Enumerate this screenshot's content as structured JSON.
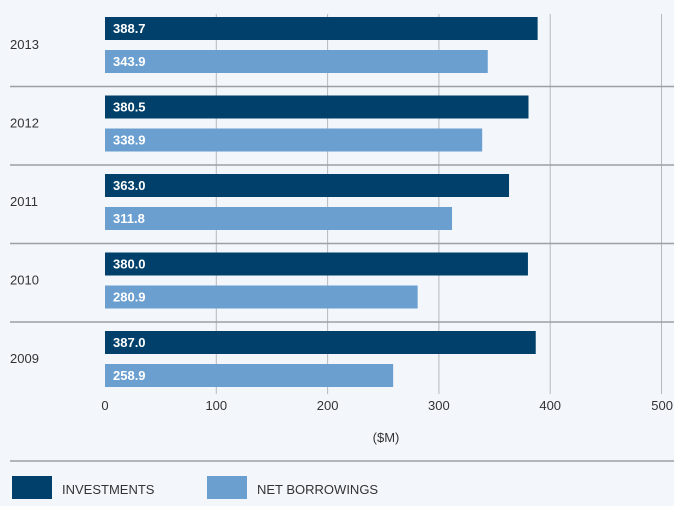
{
  "chart_data": {
    "type": "bar",
    "orientation": "horizontal",
    "categories": [
      "2013",
      "2012",
      "2011",
      "2010",
      "2009"
    ],
    "series": [
      {
        "name": "INVESTMENTS",
        "color": "#00406a",
        "values": [
          388.7,
          380.5,
          363.0,
          380.0,
          387.0
        ]
      },
      {
        "name": "NET BORROWINGS",
        "color": "#6a9fd0",
        "values": [
          343.9,
          338.9,
          311.8,
          280.9,
          258.9
        ]
      }
    ],
    "value_labels": {
      "INVESTMENTS": [
        "388.7",
        "380.5",
        "363.0",
        "380.0",
        "387.0"
      ],
      "NET BORROWINGS": [
        "343.9",
        "338.9",
        "311.8",
        "280.9",
        "258.9"
      ]
    },
    "xlabel": "($M)",
    "xticks": [
      0,
      100,
      200,
      300,
      400,
      500
    ],
    "xlim": [
      0,
      500
    ],
    "grid": true,
    "legend_position": "bottom-left"
  }
}
